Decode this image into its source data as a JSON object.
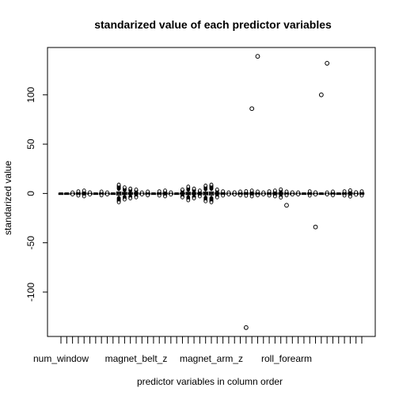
{
  "chart_data": {
    "type": "boxplot",
    "title": "standarized value of each predictor variables",
    "xlabel": "predictor variables in column order",
    "ylabel": "standarized value",
    "ylim": [
      -145,
      148
    ],
    "yticks": [
      -100,
      -50,
      0,
      50,
      100
    ],
    "n_variables": 53,
    "x_tick_labels": [
      {
        "position": 1,
        "label": "num_window"
      },
      {
        "position": 14,
        "label": "magnet_belt_z"
      },
      {
        "position": 27,
        "label": "magnet_arm_z"
      },
      {
        "position": 40,
        "label": "roll_forearm"
      }
    ],
    "spread": [
      0.8,
      1.0,
      1.2,
      2.5,
      3.0,
      1.5,
      1.0,
      2.0,
      1.2,
      1.0,
      9.0,
      6.5,
      5.0,
      4.0,
      1.2,
      2.0,
      1.0,
      2.5,
      3.0,
      1.5,
      1.0,
      4.0,
      7.0,
      5.0,
      3.0,
      8.0,
      9.0,
      4.0,
      2.5,
      1.2,
      1.5,
      2.0,
      2.8,
      3.0,
      2.0,
      1.2,
      2.5,
      3.0,
      4.5,
      2.0,
      1.5,
      1.2,
      1.0,
      2.5,
      1.5,
      1.0,
      1.2,
      2.0,
      1.0,
      2.5,
      3.5,
      1.8,
      2.5
    ],
    "outliers": [
      {
        "variable": 33,
        "value": -136
      },
      {
        "variable": 34,
        "value": 86
      },
      {
        "variable": 35,
        "value": 139
      },
      {
        "variable": 40,
        "value": -12
      },
      {
        "variable": 45,
        "value": -34
      },
      {
        "variable": 46,
        "value": 100
      },
      {
        "variable": 47,
        "value": 132
      }
    ]
  }
}
